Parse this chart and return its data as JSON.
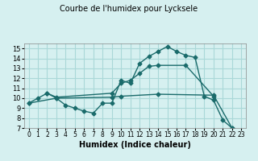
{
  "title": "Courbe de l'humidex pour Lycksele",
  "xlabel": "Humidex (Indice chaleur)",
  "bg_color": "#d6f0f0",
  "line_color": "#1a6b6b",
  "grid_color": "#aad8d8",
  "xlim": [
    -0.5,
    23.5
  ],
  "ylim": [
    7,
    15.5
  ],
  "xticks": [
    0,
    1,
    2,
    3,
    4,
    5,
    6,
    7,
    8,
    9,
    10,
    11,
    12,
    13,
    14,
    15,
    16,
    17,
    18,
    19,
    20,
    21,
    22,
    23
  ],
  "yticks": [
    7,
    8,
    9,
    10,
    11,
    12,
    13,
    14,
    15
  ],
  "line1_x": [
    0,
    1,
    2,
    3,
    4,
    5,
    6,
    7,
    8,
    9,
    10,
    11,
    12,
    13,
    14,
    15,
    16,
    17,
    18,
    19,
    20,
    21,
    22
  ],
  "line1_y": [
    9.5,
    10.0,
    10.5,
    10.0,
    9.3,
    9.0,
    8.7,
    8.5,
    9.5,
    9.5,
    11.8,
    11.5,
    13.5,
    14.2,
    14.7,
    15.2,
    14.7,
    14.3,
    14.1,
    10.2,
    9.8,
    7.8,
    7.0
  ],
  "line2_x": [
    2,
    3,
    9,
    10,
    11,
    12,
    13,
    14,
    17,
    20
  ],
  "line2_y": [
    10.5,
    10.1,
    10.5,
    11.5,
    11.8,
    12.5,
    13.2,
    13.3,
    13.3,
    10.2
  ],
  "line3_x": [
    0,
    3,
    9,
    10,
    14,
    20,
    22
  ],
  "line3_y": [
    9.5,
    10.0,
    10.1,
    10.2,
    10.4,
    10.3,
    7.0
  ]
}
